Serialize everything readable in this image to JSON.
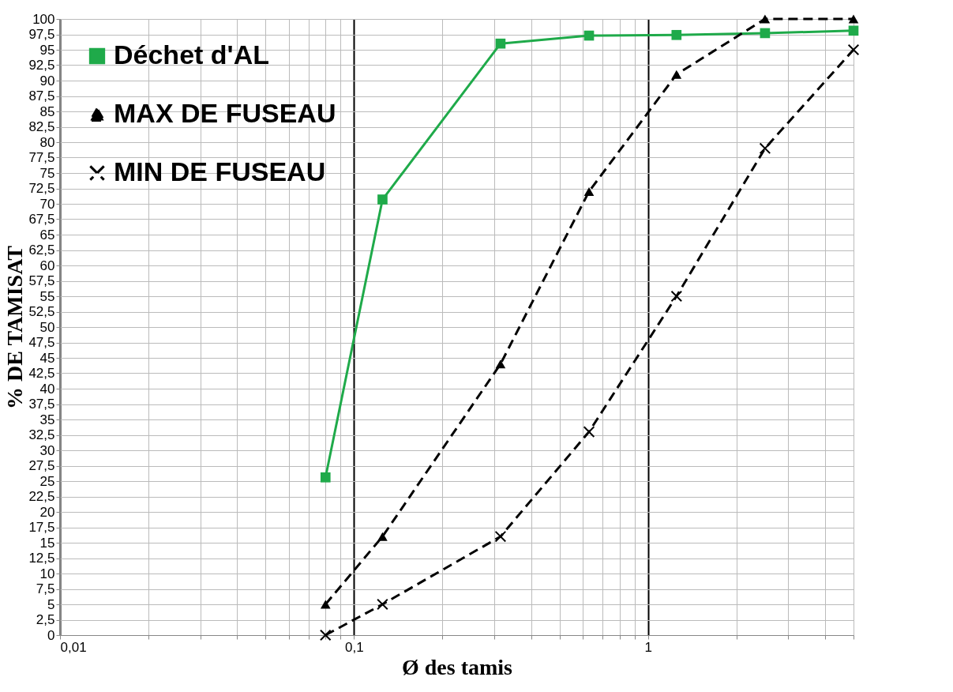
{
  "chart_data": {
    "type": "line",
    "xlabel": "Ø des tamis",
    "ylabel": "% DE TAMISAT",
    "log": "x",
    "x": [
      0.08,
      0.125,
      0.315,
      0.63,
      1.25,
      2.5,
      5
    ],
    "series": [
      {
        "name": "Déchet d'AL",
        "color": "#1faa4a",
        "marker": "square",
        "line_style": "solid",
        "values": [
          25.6,
          70.7,
          96,
          97.3,
          97.4,
          97.7,
          98.1
        ]
      },
      {
        "name": "MAX DE FUSEAU",
        "color": "#000000",
        "marker": "triangle",
        "line_style": "dashed",
        "values": [
          5,
          16,
          44,
          72,
          91,
          100,
          100
        ]
      },
      {
        "name": "MIN DE FUSEAU",
        "color": "#000000",
        "marker": "cross",
        "line_style": "dashed",
        "values": [
          0,
          5,
          16,
          33,
          55,
          79,
          95
        ]
      }
    ],
    "xlim": [
      0.01,
      5
    ],
    "xticks": [
      {
        "value": 0.01,
        "label": "0,01"
      },
      {
        "value": 0.02,
        "label": null
      },
      {
        "value": 0.03,
        "label": null
      },
      {
        "value": 0.04,
        "label": null
      },
      {
        "value": 0.05,
        "label": null
      },
      {
        "value": 0.06,
        "label": null
      },
      {
        "value": 0.07,
        "label": null
      },
      {
        "value": 0.08,
        "label": null
      },
      {
        "value": 0.09,
        "label": null
      },
      {
        "value": 0.1,
        "label": "0,1"
      },
      {
        "value": 0.2,
        "label": null
      },
      {
        "value": 0.3,
        "label": null
      },
      {
        "value": 0.4,
        "label": null
      },
      {
        "value": 0.5,
        "label": null
      },
      {
        "value": 0.6,
        "label": null
      },
      {
        "value": 0.7,
        "label": null
      },
      {
        "value": 0.8,
        "label": null
      },
      {
        "value": 0.9,
        "label": null
      },
      1,
      {
        "value": 2,
        "label": null
      },
      {
        "value": 3,
        "label": null
      },
      {
        "value": 4,
        "label": null
      },
      {
        "value": 5,
        "label": null
      }
    ],
    "ylim": [
      0,
      100
    ],
    "yticks": [
      0,
      {
        "value": 2.5,
        "label": "2,5"
      },
      5,
      {
        "value": 7.5,
        "label": "7,5"
      },
      10,
      {
        "value": 12.5,
        "label": "12,5"
      },
      15,
      {
        "value": 17.5,
        "label": "17,5"
      },
      20,
      {
        "value": 22.5,
        "label": "22,5"
      },
      25,
      {
        "value": 27.5,
        "label": "27,5"
      },
      30,
      {
        "value": 32.5,
        "label": "32,5"
      },
      35,
      {
        "value": 37.5,
        "label": "37,5"
      },
      40,
      {
        "value": 42.5,
        "label": "42,5"
      },
      45,
      {
        "value": 47.5,
        "label": "47,5"
      },
      50,
      {
        "value": 52.5,
        "label": "52,5"
      },
      55,
      {
        "value": 57.5,
        "label": "57,5"
      },
      60,
      {
        "value": 62.5,
        "label": "62,5"
      },
      65,
      {
        "value": 67.5,
        "label": "67,5"
      },
      70,
      {
        "value": 72.5,
        "label": "72,5"
      },
      75,
      {
        "value": 77.5,
        "label": "77,5"
      },
      80,
      {
        "value": 82.5,
        "label": "82,5"
      },
      85,
      {
        "value": 87.5,
        "label": "87,5"
      },
      90,
      {
        "value": 92.5,
        "label": "92,5"
      },
      95,
      {
        "value": 97.5,
        "label": "97,5"
      },
      100
    ],
    "grid": true,
    "legend": "top left"
  }
}
